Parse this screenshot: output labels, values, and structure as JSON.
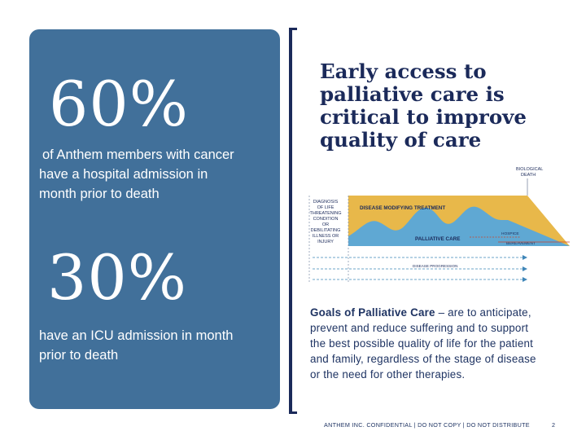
{
  "stats": [
    {
      "value": "60%",
      "description_lines": [
        "of Anthem members with cancer",
        "have a hospital admission in",
        "month prior to death"
      ]
    },
    {
      "value": "30%",
      "description_lines": [
        "have an ICU admission in month",
        "prior to death"
      ]
    }
  ],
  "headline_lines": [
    "Early access to",
    "palliative care is",
    "critical to improve",
    "quality of care"
  ],
  "diagram": {
    "biological_death": [
      "BIOLOGICAL",
      "DEATH"
    ],
    "diagnosis_label": [
      "DIAGNOSIS",
      "OF LIFE",
      "THREATENING",
      "CONDITION",
      "OR",
      "DEBILITATING",
      "ILLNESS OR",
      "INJURY"
    ],
    "disease_modifying": "DISEASE MODIFYING TREATMENT",
    "palliative": "PALLIATIVE CARE",
    "hospice": "HOSPICE",
    "bereavement": "BEREAVEMENT",
    "progression": "DISEASE PROGRESSION"
  },
  "goals": {
    "title": "Goals of Palliative Care",
    "lines_first": " – are to anticipate,",
    "lines": [
      "prevent and reduce suffering and to support",
      "the best possible quality of life for the patient",
      "and family, regardless of the stage of disease",
      "or the need for other therapies."
    ]
  },
  "footer": "ANTHEM INC. CONFIDENTIAL | DO NOT COPY | DO NOT DISTRIBUTE",
  "page_number": "2",
  "colors": {
    "panel": "#41709a",
    "navy": "#1b2a5a",
    "gold": "#e8b84a",
    "blue": "#5fa8d3"
  }
}
